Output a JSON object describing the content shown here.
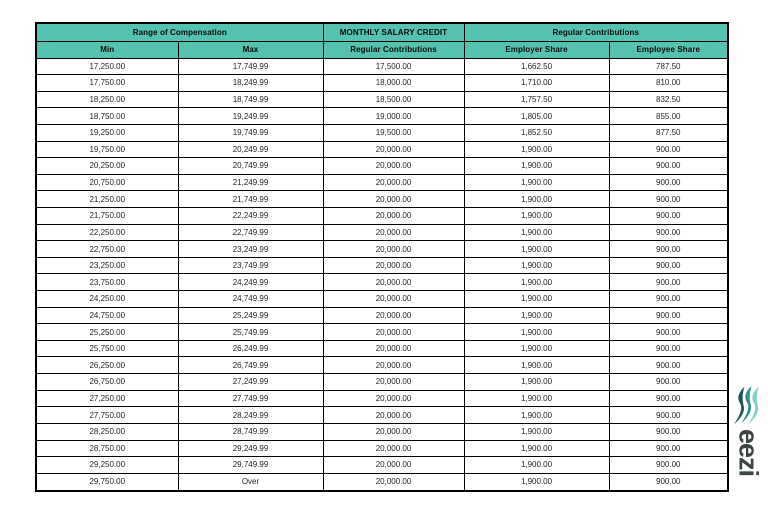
{
  "colors": {
    "page_bg": "#ffffff",
    "header_bg": "#55c2b0",
    "border": "#000000",
    "cell_text": "#262626"
  },
  "table": {
    "top_headers": [
      {
        "label": "Range of Compensation"
      },
      {
        "label": "MONTHLY SALARY CREDIT"
      },
      {
        "label": "Regular Contributions"
      }
    ],
    "sub_headers": [
      "Min",
      "Max",
      "Regular Contributions",
      "Employer Share",
      "Employee Share"
    ],
    "rows": [
      [
        "17,250.00",
        "17,749.99",
        "17,500.00",
        "1,662.50",
        "787.50"
      ],
      [
        "17,750.00",
        "18,249.99",
        "18,000.00",
        "1,710.00",
        "810.00"
      ],
      [
        "18,250.00",
        "18,749.99",
        "18,500.00",
        "1,757.50",
        "832.50"
      ],
      [
        "18,750.00",
        "19,249.99",
        "19,000.00",
        "1,805.00",
        "855.00"
      ],
      [
        "19,250.00",
        "19,749.99",
        "19,500.00",
        "1,852.50",
        "877.50"
      ],
      [
        "19,750.00",
        "20,249.99",
        "20,000.00",
        "1,900.00",
        "900.00"
      ],
      [
        "20,250.00",
        "20,749.99",
        "20,000.00",
        "1,900.00",
        "900.00"
      ],
      [
        "20,750.00",
        "21,249.99",
        "20,000.00",
        "1,900.00",
        "900.00"
      ],
      [
        "21,250.00",
        "21,749.99",
        "20,000.00",
        "1,900.00",
        "900.00"
      ],
      [
        "21,750.00",
        "22,249.99",
        "20,000.00",
        "1,900.00",
        "900.00"
      ],
      [
        "22,250.00",
        "22,749.99",
        "20,000.00",
        "1,900.00",
        "900.00"
      ],
      [
        "22,750.00",
        "23,249.99",
        "20,000.00",
        "1,900.00",
        "900.00"
      ],
      [
        "23,250.00",
        "23,749.99",
        "20,000.00",
        "1,900.00",
        "900.00"
      ],
      [
        "23,750.00",
        "24,249.99",
        "20,000.00",
        "1,900.00",
        "900.00"
      ],
      [
        "24,250.00",
        "24,749.99",
        "20,000.00",
        "1,900.00",
        "900.00"
      ],
      [
        "24,750.00",
        "25,249.99",
        "20,000.00",
        "1,900.00",
        "900.00"
      ],
      [
        "25,250.00",
        "25,749.99",
        "20,000.00",
        "1,900.00",
        "900.00"
      ],
      [
        "25,750.00",
        "26,249.99",
        "20,000.00",
        "1,900.00",
        "900.00"
      ],
      [
        "26,250.00",
        "26,749.99",
        "20,000.00",
        "1,900.00",
        "900.00"
      ],
      [
        "26,750.00",
        "27,249.99",
        "20,000.00",
        "1,900.00",
        "900.00"
      ],
      [
        "27,250.00",
        "27,749.99",
        "20,000.00",
        "1,900.00",
        "900.00"
      ],
      [
        "27,750.00",
        "28,249.99",
        "20,000.00",
        "1,900.00",
        "900.00"
      ],
      [
        "28,250.00",
        "28,749.99",
        "20,000.00",
        "1,900.00",
        "900.00"
      ],
      [
        "28,750.00",
        "29,249.99",
        "20,000.00",
        "1,900.00",
        "900.00"
      ],
      [
        "29,250.00",
        "29,749.99",
        "20,000.00",
        "1,900.00",
        "900.00"
      ],
      [
        "29,750.00",
        "Over",
        "20,000.00",
        "1,900.00",
        "900.00"
      ]
    ]
  },
  "logo": {
    "text": "eezi",
    "icon": "eezi-wave-icon",
    "text_color": "#3d4444",
    "wave_colors": [
      "#23545d",
      "#2f918a",
      "#82cfc8"
    ]
  }
}
